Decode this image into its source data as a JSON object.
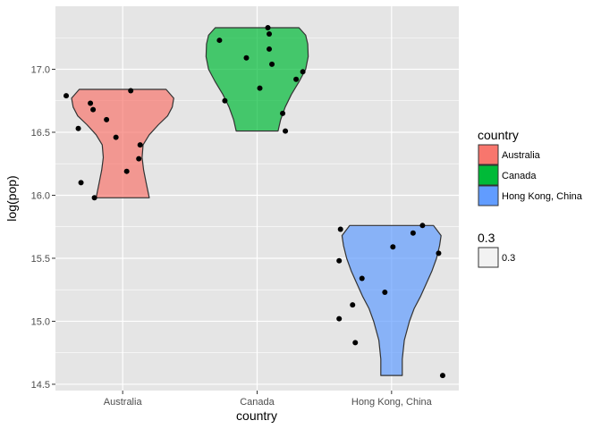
{
  "chart_data": {
    "type": "violin",
    "xlabel": "country",
    "ylabel": "log(pop)",
    "categories": [
      "Australia",
      "Canada",
      "Hong Kong, China"
    ],
    "ylim": [
      14.45,
      17.5
    ],
    "yticks": [
      14.5,
      15.0,
      15.5,
      16.0,
      16.5,
      17.0
    ],
    "ytick_labels": [
      "14.5",
      "15.0",
      "15.5",
      "16.0",
      "16.5",
      "17.0"
    ],
    "grid": true,
    "legend_position": "right",
    "series": [
      {
        "name": "Australia",
        "color": "#F8766D",
        "violin": {
          "min": 15.98,
          "max": 16.84,
          "profile": [
            [
              15.98,
              0.52
            ],
            [
              16.1,
              0.46
            ],
            [
              16.2,
              0.41
            ],
            [
              16.3,
              0.38
            ],
            [
              16.4,
              0.4
            ],
            [
              16.48,
              0.52
            ],
            [
              16.56,
              0.7
            ],
            [
              16.63,
              0.88
            ],
            [
              16.7,
              0.97
            ],
            [
              16.77,
              1.0
            ],
            [
              16.84,
              0.85
            ]
          ]
        },
        "points": [
          [
            -0.42,
            16.79
          ],
          [
            -0.33,
            16.53
          ],
          [
            -0.31,
            16.1
          ],
          [
            -0.24,
            16.73
          ],
          [
            -0.22,
            16.68
          ],
          [
            -0.21,
            15.98
          ],
          [
            -0.12,
            16.6
          ],
          [
            -0.05,
            16.46
          ],
          [
            0.03,
            16.19
          ],
          [
            0.06,
            16.83
          ],
          [
            0.12,
            16.29
          ],
          [
            0.13,
            16.4
          ]
        ]
      },
      {
        "name": "Canada",
        "color": "#00BA38",
        "violin": {
          "min": 16.51,
          "max": 17.33,
          "profile": [
            [
              16.51,
              0.41
            ],
            [
              16.6,
              0.46
            ],
            [
              16.7,
              0.55
            ],
            [
              16.8,
              0.67
            ],
            [
              16.9,
              0.82
            ],
            [
              17.0,
              0.95
            ],
            [
              17.1,
              1.0
            ],
            [
              17.2,
              0.99
            ],
            [
              17.27,
              0.95
            ],
            [
              17.33,
              0.82
            ]
          ]
        },
        "points": [
          [
            -0.28,
            17.23
          ],
          [
            -0.24,
            16.75
          ],
          [
            -0.08,
            17.09
          ],
          [
            0.02,
            16.85
          ],
          [
            0.08,
            17.33
          ],
          [
            0.09,
            17.28
          ],
          [
            0.09,
            17.16
          ],
          [
            0.11,
            17.04
          ],
          [
            0.19,
            16.65
          ],
          [
            0.21,
            16.51
          ],
          [
            0.29,
            16.92
          ],
          [
            0.34,
            16.98
          ]
        ]
      },
      {
        "name": "Hong Kong, China",
        "color": "#619CFF",
        "violin": {
          "min": 14.57,
          "max": 15.76,
          "profile": [
            [
              14.57,
              0.21
            ],
            [
              14.7,
              0.21
            ],
            [
              14.85,
              0.25
            ],
            [
              15.0,
              0.35
            ],
            [
              15.1,
              0.44
            ],
            [
              15.2,
              0.57
            ],
            [
              15.3,
              0.68
            ],
            [
              15.4,
              0.79
            ],
            [
              15.5,
              0.88
            ],
            [
              15.6,
              0.94
            ],
            [
              15.68,
              0.97
            ],
            [
              15.76,
              0.82
            ]
          ]
        },
        "points": [
          [
            -0.39,
            15.02
          ],
          [
            -0.39,
            15.48
          ],
          [
            -0.38,
            15.73
          ],
          [
            -0.29,
            15.13
          ],
          [
            -0.27,
            14.83
          ],
          [
            -0.22,
            15.34
          ],
          [
            -0.05,
            15.23
          ],
          [
            0.01,
            15.59
          ],
          [
            0.16,
            15.7
          ],
          [
            0.23,
            15.76
          ],
          [
            0.35,
            15.54
          ],
          [
            0.38,
            14.57
          ]
        ]
      }
    ]
  },
  "legend": {
    "fill_title": "country",
    "fill_items": [
      {
        "label": "Australia",
        "color": "#F8766D"
      },
      {
        "label": "Canada",
        "color": "#00BA38"
      },
      {
        "label": "Hong Kong, China",
        "color": "#619CFF"
      }
    ],
    "alpha_title": "0.3",
    "alpha_items": [
      {
        "label": "0.3"
      }
    ]
  },
  "style": {
    "panel_background": "#E5E5E5",
    "grid_color": "#FFFFFF",
    "violin_outline": "#333333",
    "violin_alpha": 0.7,
    "point_color": "#000000"
  }
}
